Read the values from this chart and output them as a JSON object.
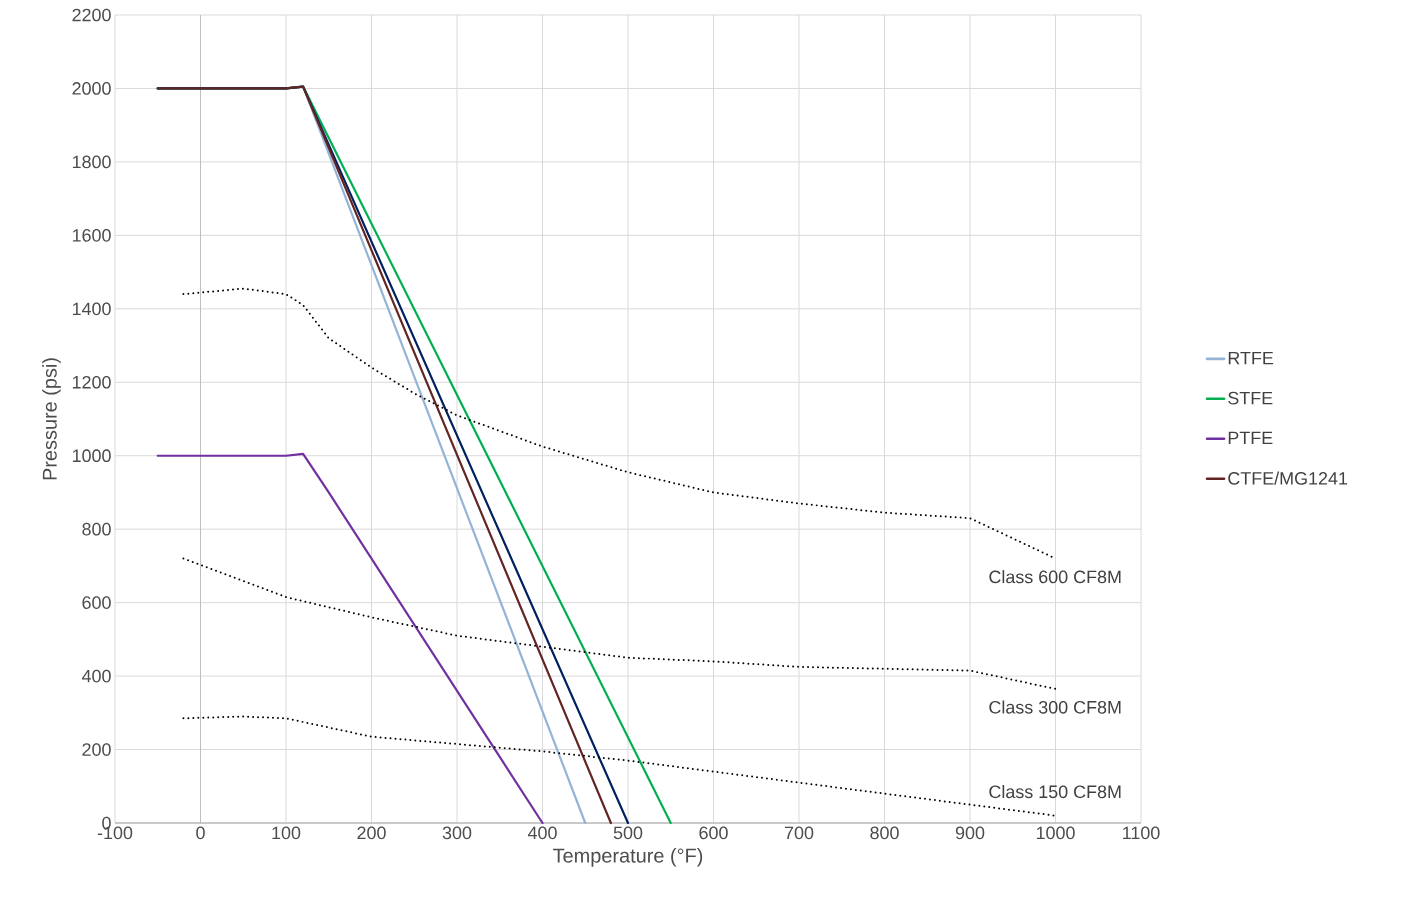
{
  "chart_data": {
    "type": "line",
    "xlabel": "Temperature (°F)",
    "ylabel": "Pressure (psi)",
    "xlim": [
      -100,
      1100
    ],
    "xticks": [
      -100,
      0,
      100,
      200,
      300,
      400,
      500,
      600,
      700,
      800,
      900,
      1000,
      1100
    ],
    "ylim": [
      0,
      2200
    ],
    "yticks": [
      0,
      200,
      400,
      600,
      800,
      1000,
      1200,
      1400,
      1600,
      1800,
      2000,
      2200
    ],
    "grid": true,
    "legend": "right",
    "marker": "none",
    "ref_lines": [
      {
        "axis": "x",
        "value": 0,
        "color": "#bfbfbf"
      }
    ],
    "series": [
      {
        "name": "RTFE",
        "color": "#95b3d7",
        "line_style": "solid",
        "x": [
          -50,
          100,
          120,
          450
        ],
        "values": [
          2000,
          2000,
          2005,
          0
        ]
      },
      {
        "name": "STFE",
        "color": "#00b050",
        "line_style": "solid",
        "x": [
          -50,
          100,
          120,
          550
        ],
        "values": [
          2000,
          2000,
          2005,
          0
        ]
      },
      {
        "name": "PTFE",
        "color": "#7030a0",
        "line_style": "solid",
        "x": [
          -50,
          100,
          120,
          150,
          400
        ],
        "values": [
          1000,
          1000,
          1005,
          900,
          0
        ]
      },
      {
        "color": "#002060",
        "line_style": "solid",
        "x": [
          -50,
          100,
          120,
          500
        ],
        "values": [
          2000,
          2000,
          2005,
          0
        ]
      },
      {
        "name": "CTFE/MG1241",
        "color": "#632523",
        "line_style": "solid",
        "x": [
          -50,
          100,
          120,
          480
        ],
        "values": [
          2000,
          2000,
          2005,
          0
        ]
      },
      {
        "name": "Class 600 CF8M",
        "color": "#000000",
        "line_style": "dotted",
        "x": [
          -20,
          50,
          100,
          120,
          150,
          200,
          250,
          300,
          400,
          500,
          600,
          700,
          800,
          900,
          1000
        ],
        "values": [
          1440,
          1455,
          1440,
          1410,
          1320,
          1240,
          1170,
          1110,
          1025,
          955,
          900,
          870,
          845,
          830,
          720
        ]
      },
      {
        "name": "Class 300 CF8M",
        "color": "#000000",
        "line_style": "dotted",
        "x": [
          -20,
          100,
          200,
          300,
          400,
          500,
          600,
          700,
          800,
          900,
          1000
        ],
        "values": [
          720,
          615,
          560,
          510,
          480,
          450,
          440,
          425,
          420,
          415,
          365
        ]
      },
      {
        "name": "Class 150 CF8M",
        "color": "#000000",
        "line_style": "dotted",
        "x": [
          -20,
          50,
          100,
          200,
          300,
          400,
          500,
          600,
          700,
          800,
          900,
          1000
        ],
        "values": [
          285,
          290,
          285,
          235,
          215,
          195,
          170,
          140,
          110,
          80,
          50,
          20
        ]
      }
    ]
  }
}
